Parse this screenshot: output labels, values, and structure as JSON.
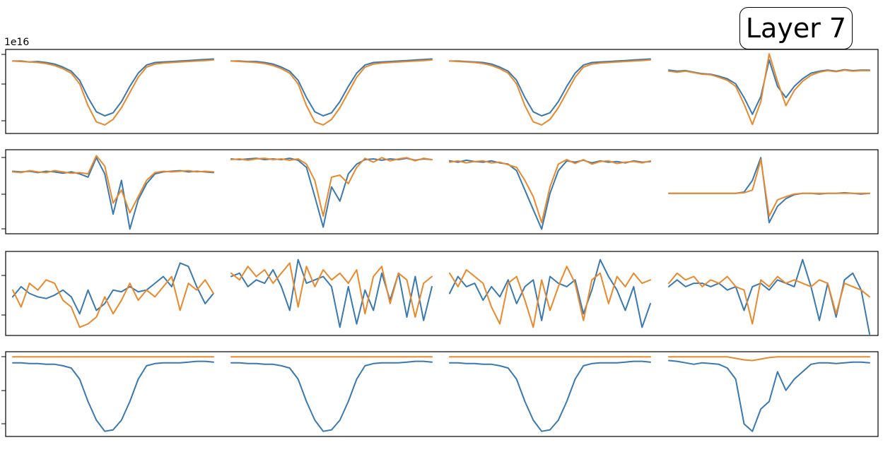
{
  "header": {
    "layer_label": "Layer 7",
    "y_exponent_label": "1e16"
  },
  "chart_data": {
    "type": "line",
    "title": "",
    "xlabel": "",
    "ylabel": "",
    "grid": false,
    "colors": {
      "series_a": "#3a78b0",
      "series_b": "#e8892c"
    },
    "rows": [
      {
        "ylim": [
          -1.4,
          0.2
        ],
        "panels": [
          {
            "a": [
              0,
              0,
              -0.02,
              -0.01,
              -0.03,
              -0.06,
              -0.12,
              -0.2,
              -0.38,
              -0.72,
              -1.0,
              -1.08,
              -1.02,
              -0.8,
              -0.5,
              -0.24,
              -0.08,
              -0.03,
              -0.02,
              -0.01,
              0,
              0.01,
              0.02,
              0.03,
              0.04
            ],
            "b": [
              0,
              -0.01,
              -0.02,
              -0.03,
              -0.05,
              -0.09,
              -0.15,
              -0.24,
              -0.45,
              -0.88,
              -1.2,
              -1.26,
              -1.15,
              -0.92,
              -0.62,
              -0.32,
              -0.12,
              -0.06,
              -0.04,
              -0.03,
              -0.02,
              -0.01,
              0,
              0.01,
              0.02
            ]
          },
          {
            "a": [
              0,
              0,
              -0.01,
              -0.01,
              -0.03,
              -0.06,
              -0.12,
              -0.2,
              -0.38,
              -0.72,
              -1.0,
              -1.08,
              -1.02,
              -0.8,
              -0.5,
              -0.24,
              -0.08,
              -0.03,
              -0.02,
              -0.01,
              0,
              0.01,
              0.02,
              0.03,
              0.04
            ],
            "b": [
              0,
              -0.01,
              -0.02,
              -0.03,
              -0.05,
              -0.09,
              -0.15,
              -0.24,
              -0.45,
              -0.88,
              -1.2,
              -1.26,
              -1.15,
              -0.92,
              -0.62,
              -0.32,
              -0.12,
              -0.06,
              -0.04,
              -0.03,
              -0.02,
              -0.01,
              0,
              0.01,
              0.02
            ]
          },
          {
            "a": [
              0,
              0,
              -0.01,
              -0.02,
              -0.03,
              -0.06,
              -0.12,
              -0.2,
              -0.38,
              -0.72,
              -1.0,
              -1.08,
              -1.02,
              -0.8,
              -0.5,
              -0.24,
              -0.08,
              -0.03,
              -0.02,
              -0.01,
              0,
              0.01,
              0.02,
              0.03,
              0.04
            ],
            "b": [
              0,
              -0.01,
              -0.02,
              -0.03,
              -0.05,
              -0.09,
              -0.15,
              -0.24,
              -0.45,
              -0.88,
              -1.2,
              -1.26,
              -1.15,
              -0.92,
              -0.62,
              -0.32,
              -0.12,
              -0.06,
              -0.04,
              -0.03,
              -0.02,
              -0.01,
              0,
              0.01,
              0.02
            ]
          },
          {
            "a": [
              -0.18,
              -0.2,
              -0.19,
              -0.22,
              -0.25,
              -0.26,
              -0.3,
              -0.35,
              -0.45,
              -0.72,
              -1.05,
              -0.7,
              0.02,
              -0.5,
              -0.72,
              -0.5,
              -0.35,
              -0.24,
              -0.2,
              -0.18,
              -0.2,
              -0.17,
              -0.19,
              -0.18,
              -0.18
            ],
            "b": [
              -0.2,
              -0.22,
              -0.2,
              -0.23,
              -0.26,
              -0.27,
              -0.32,
              -0.38,
              -0.5,
              -0.85,
              -1.25,
              -0.8,
              0.14,
              -0.4,
              -0.88,
              -0.58,
              -0.4,
              -0.28,
              -0.22,
              -0.19,
              -0.21,
              -0.18,
              -0.2,
              -0.19,
              -0.19
            ]
          }
        ]
      },
      {
        "ylim": [
          -1.1,
          0.15
        ],
        "panels": [
          {
            "a": [
              -0.16,
              -0.17,
              -0.16,
              -0.18,
              -0.16,
              -0.17,
              -0.19,
              -0.17,
              -0.2,
              -0.25,
              0.05,
              -0.2,
              -0.82,
              -0.3,
              -1.05,
              -0.6,
              -0.35,
              -0.2,
              -0.17,
              -0.16,
              -0.15,
              -0.17,
              -0.16,
              -0.17,
              -0.18
            ],
            "b": [
              -0.17,
              -0.18,
              -0.15,
              -0.17,
              -0.18,
              -0.15,
              -0.17,
              -0.19,
              -0.18,
              -0.2,
              0.08,
              -0.08,
              -0.65,
              -0.45,
              -0.8,
              -0.55,
              -0.3,
              -0.18,
              -0.16,
              -0.17,
              -0.16,
              -0.15,
              -0.17,
              -0.16,
              -0.17
            ]
          },
          {
            "a": [
              0.03,
              0.02,
              0.03,
              0.04,
              0.02,
              0.03,
              0.02,
              0.04,
              0.01,
              -0.1,
              -0.55,
              -1.02,
              -0.4,
              -0.62,
              -0.2,
              -0.05,
              0.02,
              0.03,
              0.01,
              0.03,
              0.02,
              0.04,
              0.01,
              0.03,
              0.02
            ],
            "b": [
              0.02,
              0.03,
              0.01,
              0.03,
              0.04,
              0.02,
              0.03,
              0.01,
              0.03,
              -0.05,
              -0.3,
              -0.85,
              -0.25,
              -0.22,
              -0.35,
              -0.1,
              0.04,
              -0.02,
              0.05,
              0,
              0.03,
              0.05,
              0,
              0.04,
              0.02
            ]
          },
          {
            "a": [
              0,
              -0.02,
              0.01,
              -0.01,
              -0.02,
              0,
              -0.03,
              -0.05,
              -0.15,
              -0.45,
              -0.75,
              -1.05,
              -0.5,
              -0.15,
              0,
              -0.02,
              0.01,
              -0.03,
              0,
              -0.02,
              -0.01,
              -0.03,
              0,
              -0.02,
              -0.01
            ],
            "b": [
              -0.02,
              0,
              -0.03,
              -0.01,
              0,
              -0.03,
              -0.02,
              -0.06,
              -0.1,
              -0.3,
              -0.55,
              -0.95,
              -0.4,
              -0.05,
              0.02,
              -0.04,
              0.02,
              -0.05,
              -0.01,
              0,
              -0.04,
              -0.02,
              -0.01,
              -0.03,
              0
            ]
          },
          {
            "a": [
              -0.5,
              -0.5,
              -0.5,
              -0.5,
              -0.5,
              -0.5,
              -0.5,
              -0.5,
              -0.5,
              -0.48,
              -0.3,
              0.05,
              -0.95,
              -0.7,
              -0.58,
              -0.52,
              -0.5,
              -0.5,
              -0.51,
              -0.5,
              -0.5,
              -0.49,
              -0.5,
              -0.51,
              -0.5
            ],
            "b": [
              -0.5,
              -0.5,
              -0.5,
              -0.5,
              -0.5,
              -0.5,
              -0.5,
              -0.5,
              -0.5,
              -0.49,
              -0.45,
              0.02,
              -0.85,
              -0.6,
              -0.55,
              -0.51,
              -0.5,
              -0.5,
              -0.5,
              -0.5,
              -0.5,
              -0.5,
              -0.5,
              -0.5,
              -0.5
            ]
          }
        ]
      },
      {
        "ylim": [
          -1.2,
          1.2
        ],
        "panels": [
          {
            "a": [
              -0.1,
              0.2,
              0,
              -0.1,
              -0.15,
              -0.05,
              0.1,
              -0.1,
              -0.6,
              0.1,
              -0.5,
              -0.3,
              0.1,
              0.05,
              0.2,
              0.05,
              0.1,
              0.3,
              0.5,
              0.2,
              0.9,
              0.8,
              0.2,
              -0.3,
              0
            ],
            "b": [
              0.1,
              -0.4,
              0.3,
              0.1,
              0.4,
              0.3,
              -0.2,
              -0.4,
              -1.0,
              -0.9,
              -0.7,
              -0.1,
              -0.6,
              -0.2,
              0.3,
              -0.2,
              0.1,
              -0.1,
              0.2,
              0.5,
              -0.5,
              0.3,
              0.1,
              0.4,
              0
            ]
          },
          {
            "a": [
              0.5,
              0.6,
              0.2,
              0.4,
              0.3,
              0.7,
              0.2,
              -0.5,
              1.0,
              0.3,
              0.4,
              0.5,
              0.2,
              -1.0,
              0.2,
              -0.9,
              0.1,
              -0.5,
              0.6,
              -0.2,
              0.6,
              -0.7,
              0.5,
              -0.8,
              0.2
            ],
            "b": [
              0.6,
              0.4,
              0.8,
              0.5,
              0.7,
              0.3,
              0.6,
              0.9,
              -0.4,
              0.8,
              0.2,
              0.7,
              0.4,
              0.6,
              0.3,
              0.7,
              -0.6,
              0.5,
              0.8,
              -0.3,
              0.6,
              0.4,
              -0.7,
              0.3,
              0.5
            ]
          },
          {
            "a": [
              0,
              0.5,
              0.2,
              0.3,
              -0.2,
              0.2,
              -0.1,
              0.4,
              -0.3,
              0.2,
              0.4,
              -0.8,
              0.5,
              0.3,
              0.2,
              0.4,
              -0.6,
              0.1,
              1.0,
              0.5,
              0.1,
              -0.5,
              0.2,
              -1.0,
              -0.3
            ],
            "b": [
              0.6,
              0.2,
              0.7,
              0.5,
              0.3,
              -0.4,
              -0.9,
              0.3,
              0.5,
              -0.2,
              -1.0,
              0.4,
              -0.5,
              0.2,
              0.8,
              0.3,
              -0.8,
              0.4,
              0.6,
              -0.3,
              0.5,
              0.2,
              0.6,
              0.3,
              0.4
            ]
          },
          {
            "a": [
              0.2,
              0.4,
              0.2,
              0.3,
              0.3,
              0.2,
              0.3,
              0.1,
              0.2,
              -0.5,
              0.2,
              0.3,
              0.1,
              0.4,
              0.3,
              0.2,
              1.0,
              0.2,
              -0.8,
              0.3,
              -0.7,
              0.4,
              0.6,
              0.1,
              -1.2
            ],
            "b": [
              0.3,
              0.6,
              0.4,
              0.5,
              0.2,
              0.4,
              0.3,
              0.5,
              0.2,
              0.1,
              -0.9,
              0.4,
              0.2,
              0.5,
              0.3,
              0.4,
              0.3,
              0.2,
              0.4,
              0.3,
              -0.6,
              0.3,
              0.2,
              0.1,
              -0.1
            ]
          }
        ]
      },
      {
        "ylim": [
          -1.05,
          0.05
        ],
        "panels": [
          {
            "a": [
              -0.08,
              -0.08,
              -0.09,
              -0.09,
              -0.1,
              -0.1,
              -0.12,
              -0.15,
              -0.3,
              -0.6,
              -0.85,
              -1.0,
              -0.98,
              -0.85,
              -0.6,
              -0.3,
              -0.12,
              -0.09,
              -0.08,
              -0.08,
              -0.08,
              -0.07,
              -0.06,
              -0.06,
              -0.07
            ],
            "b": [
              0,
              0,
              0,
              0,
              0,
              0,
              0,
              0,
              0,
              0,
              0,
              0,
              0,
              0,
              0,
              0,
              0,
              0,
              0,
              0,
              0,
              0,
              0,
              0,
              0
            ]
          },
          {
            "a": [
              -0.08,
              -0.08,
              -0.09,
              -0.09,
              -0.1,
              -0.1,
              -0.12,
              -0.15,
              -0.3,
              -0.6,
              -0.85,
              -1.0,
              -0.98,
              -0.85,
              -0.6,
              -0.3,
              -0.12,
              -0.09,
              -0.08,
              -0.08,
              -0.08,
              -0.07,
              -0.06,
              -0.06,
              -0.07
            ],
            "b": [
              0,
              0,
              0,
              0,
              0,
              0,
              0,
              0,
              0,
              0,
              0,
              0,
              0,
              0,
              0,
              0,
              0,
              0,
              0,
              0,
              0,
              0,
              0,
              0,
              0
            ]
          },
          {
            "a": [
              -0.08,
              -0.08,
              -0.09,
              -0.09,
              -0.1,
              -0.1,
              -0.12,
              -0.15,
              -0.3,
              -0.6,
              -0.85,
              -1.0,
              -0.98,
              -0.85,
              -0.6,
              -0.3,
              -0.12,
              -0.09,
              -0.08,
              -0.08,
              -0.08,
              -0.07,
              -0.06,
              -0.06,
              -0.07
            ],
            "b": [
              0,
              0,
              0,
              0,
              0,
              0,
              0,
              0,
              0,
              0,
              0,
              0,
              0,
              0,
              0,
              0,
              0,
              0,
              0,
              0,
              0,
              0,
              0,
              0,
              0
            ]
          },
          {
            "a": [
              -0.05,
              -0.06,
              -0.08,
              -0.1,
              -0.08,
              -0.09,
              -0.1,
              -0.15,
              -0.3,
              -0.9,
              -1.0,
              -0.7,
              -0.6,
              -0.2,
              -0.45,
              -0.3,
              -0.2,
              -0.1,
              -0.08,
              -0.08,
              -0.09,
              -0.08,
              -0.07,
              -0.07,
              -0.08
            ],
            "b": [
              0,
              0,
              0,
              0,
              0,
              0,
              0,
              0,
              -0.02,
              -0.04,
              -0.05,
              -0.03,
              -0.01,
              0,
              0,
              0,
              0,
              0,
              0,
              0,
              0,
              0,
              0,
              0,
              0
            ]
          }
        ]
      }
    ]
  }
}
